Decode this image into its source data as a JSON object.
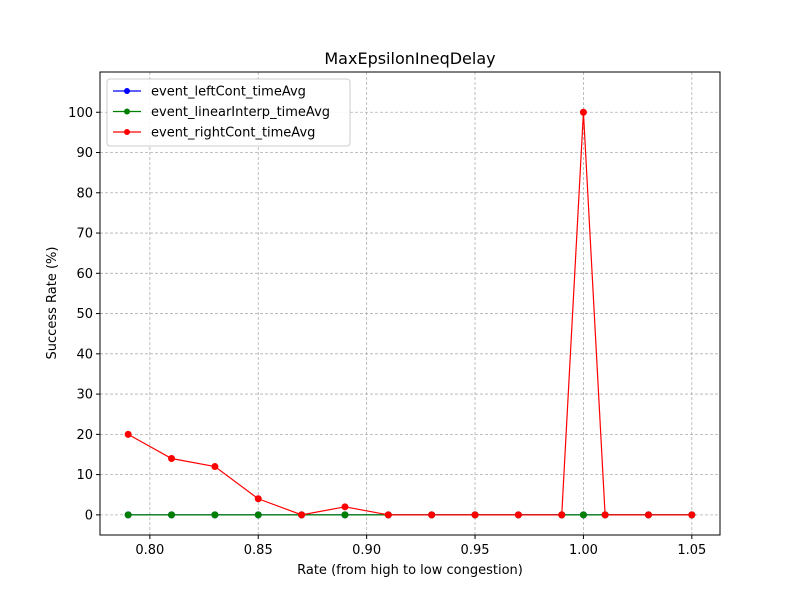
{
  "chart_data": {
    "type": "line",
    "title": "MaxEpsilonIneqDelay",
    "xlabel": "Rate (from high to low congestion)",
    "ylabel": "Success Rate (%)",
    "xlim": [
      0.777,
      1.063
    ],
    "ylim": [
      -5,
      110
    ],
    "xticks": [
      0.8,
      0.85,
      0.9,
      0.95,
      1.0,
      1.05
    ],
    "xtick_labels": [
      "0.80",
      "0.85",
      "0.90",
      "0.95",
      "1.00",
      "1.05"
    ],
    "yticks": [
      0,
      10,
      20,
      30,
      40,
      50,
      60,
      70,
      80,
      90,
      100
    ],
    "ytick_labels": [
      "0",
      "10",
      "20",
      "30",
      "40",
      "50",
      "60",
      "70",
      "80",
      "90",
      "100"
    ],
    "grid": true,
    "legend_position": "top-left",
    "x": [
      0.79,
      0.81,
      0.83,
      0.85,
      0.87,
      0.89,
      0.91,
      0.93,
      0.95,
      0.97,
      0.99,
      1.0,
      1.01,
      1.03,
      1.05
    ],
    "series": [
      {
        "name": "event_leftCont_timeAvg",
        "color": "#0000ff",
        "values": [
          0,
          0,
          0,
          0,
          0,
          0,
          0,
          0,
          0,
          0,
          0,
          0,
          0,
          0,
          0
        ]
      },
      {
        "name": "event_linearInterp_timeAvg",
        "color": "#008000",
        "values": [
          0,
          0,
          0,
          0,
          0,
          0,
          0,
          0,
          0,
          0,
          0,
          0,
          0,
          0,
          0
        ]
      },
      {
        "name": "event_rightCont_timeAvg",
        "color": "#ff0000",
        "values": [
          20,
          14,
          12,
          4,
          0,
          2,
          0,
          0,
          0,
          0,
          0,
          100,
          0,
          0,
          0
        ]
      }
    ]
  }
}
